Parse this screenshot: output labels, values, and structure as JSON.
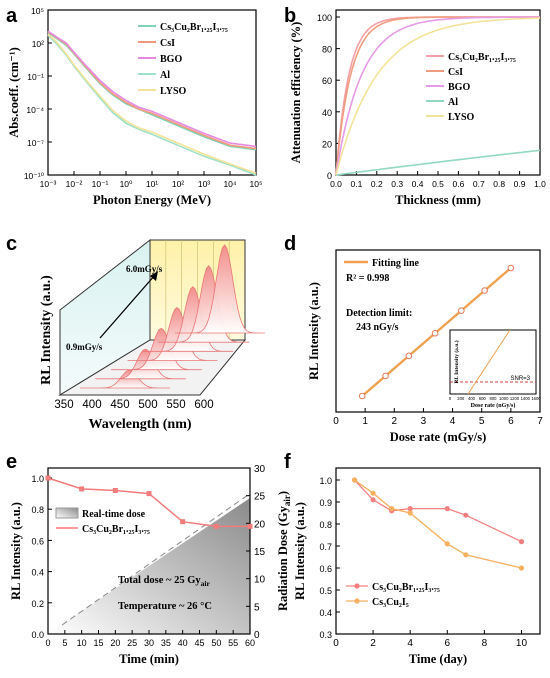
{
  "chart_data": [
    {
      "id": "a",
      "panel_letter": "a",
      "type": "line",
      "xlabel": "Photon Energy (MeV)",
      "ylabel": "Abs.coeff. (cm⁻¹)",
      "x_scale": "log",
      "y_scale": "log",
      "xlim": [
        0.001,
        100000
      ],
      "ylim": [
        1e-10,
        100000
      ],
      "x_ticks": [
        "10⁻³",
        "10⁻²",
        "10⁻¹",
        "10⁰",
        "10¹",
        "10²",
        "10³",
        "10⁴",
        "10⁵"
      ],
      "y_ticks": [
        "10⁵",
        "10²",
        "10⁻¹",
        "10⁻⁴",
        "10⁻⁷",
        "10⁻¹⁰"
      ],
      "legend": "top-right",
      "series": [
        {
          "name": "Cs3Cu2Br1.25I3.75",
          "legend_label": "Cs₃Cu₂Br₁.₂₅I₃.₇₅",
          "color": "#7fd3b4",
          "x": [
            0.001,
            0.002,
            0.005,
            0.01,
            0.03,
            0.1,
            0.3,
            1,
            3,
            10,
            100,
            1000,
            10000,
            100000
          ],
          "y": [
            800,
            300,
            60,
            10,
            0.5,
            0.02,
            0.002,
            0.0003,
            0.0001,
            3e-05,
            3e-06,
            3e-07,
            4e-08,
            2e-08
          ]
        },
        {
          "name": "CsI",
          "legend_label": "CsI",
          "color": "#f29a7c",
          "x": [
            0.001,
            0.002,
            0.005,
            0.01,
            0.03,
            0.1,
            0.3,
            1,
            3,
            10,
            100,
            1000,
            10000,
            100000
          ],
          "y": [
            1000,
            350,
            80,
            12,
            0.6,
            0.025,
            0.0025,
            0.0004,
            0.0001,
            4e-05,
            4e-06,
            4e-07,
            5e-08,
            2.5e-08
          ]
        },
        {
          "name": "BGO",
          "legend_label": "BGO",
          "color": "#e58ae0",
          "x": [
            0.001,
            0.002,
            0.005,
            0.01,
            0.03,
            0.1,
            0.3,
            1,
            3,
            10,
            100,
            1000,
            10000,
            100000
          ],
          "y": [
            1200,
            400,
            100,
            15,
            0.8,
            0.04,
            0.004,
            0.0006,
            0.00015,
            6e-05,
            6e-06,
            6e-07,
            8e-08,
            4e-08
          ]
        },
        {
          "name": "Al",
          "legend_label": "Al",
          "color": "#9ee0c8",
          "x": [
            0.001,
            0.002,
            0.005,
            0.01,
            0.03,
            0.1,
            0.3,
            1,
            3,
            10,
            100,
            1000,
            10000,
            100000
          ],
          "y": [
            500,
            100,
            8,
            0.8,
            0.03,
            0.001,
            5e-05,
            5e-06,
            1.5e-06,
            5e-07,
            5e-08,
            5e-09,
            8e-10,
            1e-10
          ]
        },
        {
          "name": "LYSO",
          "legend_label": "LYSO",
          "color": "#f3e39a",
          "x": [
            0.001,
            0.002,
            0.005,
            0.01,
            0.03,
            0.1,
            0.3,
            1,
            3,
            10,
            100,
            1000,
            10000,
            100000
          ],
          "y": [
            600,
            150,
            10,
            1.0,
            0.04,
            0.0015,
            8e-05,
            8e-06,
            2e-06,
            8e-07,
            8e-08,
            8e-09,
            1e-09,
            1.5e-10
          ]
        }
      ]
    },
    {
      "id": "b",
      "panel_letter": "b",
      "type": "line",
      "xlabel": "Thickness (mm)",
      "ylabel": "Attenuation efficiency (%)",
      "xlim": [
        0,
        1.0
      ],
      "ylim": [
        0,
        100
      ],
      "x_ticks": [
        "0.0",
        "0.1",
        "0.2",
        "0.3",
        "0.4",
        "0.5",
        "0.6",
        "0.7",
        "0.8",
        "0.9",
        "1.0"
      ],
      "y_ticks": [
        "0",
        "20",
        "40",
        "60",
        "80",
        "100"
      ],
      "legend": "right",
      "series": [
        {
          "name": "Cs3Cu2Br1.25I3.75",
          "legend_label": "Cs₃Cu₂Br₁.₂₅I₃.₇₅",
          "color": "#f2a0a8",
          "k": 16
        },
        {
          "name": "CsI",
          "legend_label": "CsI",
          "color": "#ef9d7d",
          "k": 14
        },
        {
          "name": "BGO",
          "legend_label": "BGO",
          "color": "#e69be6",
          "k": 8
        },
        {
          "name": "Al",
          "legend_label": "Al",
          "color": "#93d8c0",
          "k": 0.17
        },
        {
          "name": "LYSO",
          "legend_label": "LYSO",
          "color": "#f3e49c",
          "k": 5
        }
      ]
    },
    {
      "id": "c",
      "panel_letter": "c",
      "type": "line",
      "xlabel": "Wavelength (nm)",
      "ylabel": "RL Intensity (a.u.)",
      "x_ticks": [
        "350",
        "400",
        "450",
        "500",
        "550",
        "600"
      ],
      "annotations": [
        "6.0mGy/s",
        "0.9mGy/s"
      ],
      "series_count": 7
    },
    {
      "id": "d",
      "panel_letter": "d",
      "type": "scatter",
      "xlabel": "Dose rate (mGy/s)",
      "ylabel": "RL Intensity (a.u.)",
      "xlim": [
        0,
        7
      ],
      "x_ticks": [
        "0",
        "1",
        "2",
        "3",
        "4",
        "5",
        "6",
        "7"
      ],
      "legend": "top-left",
      "legend_label": "Fitting line",
      "r2": "R² = 0.998",
      "detection_label": "Detection limit:",
      "detection_value": "243 nGy/s",
      "points": {
        "x": [
          0.9,
          1.7,
          2.5,
          3.4,
          4.3,
          5.1,
          6.0
        ],
        "y": [
          0.9,
          1.7,
          2.5,
          3.4,
          4.3,
          5.1,
          6.0
        ]
      },
      "inset": {
        "xlabel": "Dose rate (nGy/s)",
        "ylabel": "RL Intensity (a.u.)",
        "x_ticks": [
          "0",
          "200",
          "400",
          "600",
          "800",
          "1000",
          "1200",
          "1400",
          "1600"
        ],
        "annotation": "SNR=3"
      }
    },
    {
      "id": "e",
      "panel_letter": "e",
      "type": "line",
      "xlabel": "Time (min)",
      "ylabel": "RL Intensity (a.u.)",
      "ylabel_right": "Radiation Dose (Gy",
      "ylabel_right_sub": "air",
      "xlim": [
        0,
        60
      ],
      "ylim": [
        0,
        1.0
      ],
      "ylim_right": [
        0,
        30
      ],
      "x_ticks": [
        "0",
        "5",
        "10",
        "15",
        "20",
        "25",
        "30",
        "35",
        "40",
        "45",
        "50",
        "55",
        "60"
      ],
      "y_ticks": [
        "0.0",
        "0.2",
        "0.4",
        "0.6",
        "0.8",
        "1.0"
      ],
      "y_ticks_right": [
        "0",
        "5",
        "10",
        "15",
        "20",
        "25",
        "30"
      ],
      "legend_dose": "Real-time dose",
      "legend_series": "Cs₃Cu₂Br₁.₂₅I₃.₇₅",
      "total_dose_label": "Total dose ~ 25 Gy",
      "total_dose_sub": "air",
      "temperature_label": "Temperature ~ 26 °C",
      "series": [
        {
          "name": "Cs3Cu2Br1.25I3.75",
          "color": "#f27b7b",
          "x": [
            0,
            10,
            20,
            30,
            40,
            50,
            60
          ],
          "y": [
            1.0,
            0.93,
            0.92,
            0.9,
            0.72,
            0.69,
            0.69
          ]
        }
      ]
    },
    {
      "id": "f",
      "panel_letter": "f",
      "type": "line",
      "xlabel": "Time (day)",
      "ylabel": "RL Intensity (a.u.)",
      "xlim": [
        0,
        11
      ],
      "ylim": [
        0.3,
        1.0
      ],
      "x_ticks": [
        "0",
        "2",
        "4",
        "6",
        "8",
        "10"
      ],
      "y_ticks": [
        "0.3",
        "0.4",
        "0.5",
        "0.6",
        "0.7",
        "0.8",
        "0.9",
        "1.0"
      ],
      "legend": "bottom-left",
      "series": [
        {
          "name": "Cs3Cu2Br1.25I3.75",
          "legend_label": "Cs₃Cu₂Br₁.₂₅I₃.₇₅",
          "color": "#f28080",
          "x": [
            1,
            2,
            3,
            4,
            6,
            7,
            10
          ],
          "y": [
            1.0,
            0.91,
            0.86,
            0.87,
            0.87,
            0.84,
            0.72
          ]
        },
        {
          "name": "Cs3Cu2I5",
          "legend_label": "Cs₃Cu₂I₅",
          "color": "#f5b060",
          "x": [
            1,
            2,
            3,
            4,
            6,
            7,
            10
          ],
          "y": [
            1.0,
            0.94,
            0.87,
            0.85,
            0.71,
            0.66,
            0.6
          ]
        }
      ]
    }
  ]
}
